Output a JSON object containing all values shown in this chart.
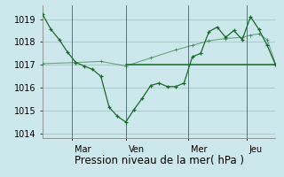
{
  "bg_color": "#cce8ec",
  "grid_color": "#aacccc",
  "line_color": "#1a6b2a",
  "ylim": [
    1013.8,
    1019.6
  ],
  "yticks": [
    1014,
    1015,
    1016,
    1017,
    1018,
    1019
  ],
  "xlabel": "Pression niveau de la mer( hPa )",
  "xlabel_fontsize": 8.5,
  "tick_fontsize": 7,
  "x_day_labels": [
    "Mar",
    "Ven",
    "Mer",
    "Jeu"
  ],
  "line1_x": [
    0,
    1,
    2,
    3,
    4,
    5,
    6,
    7,
    8,
    9,
    10,
    11,
    12,
    13,
    14,
    15,
    16,
    17,
    18,
    19,
    20,
    21,
    22,
    23,
    24,
    25,
    26,
    27,
    28
  ],
  "line1_y": [
    1019.2,
    1018.55,
    1018.1,
    1017.55,
    1017.1,
    1016.95,
    1016.8,
    1016.5,
    1015.15,
    1014.75,
    1014.5,
    1015.05,
    1015.55,
    1016.1,
    1016.2,
    1016.05,
    1016.05,
    1016.2,
    1017.35,
    1017.5,
    1018.45,
    1018.65,
    1018.2,
    1018.5,
    1018.1,
    1019.1,
    1018.55,
    1017.85,
    1017.0
  ],
  "line2_x": [
    0,
    4,
    7,
    10,
    13,
    16,
    18,
    20,
    22,
    24,
    25,
    26,
    27,
    28
  ],
  "line2_y": [
    1017.05,
    1017.1,
    1017.15,
    1016.95,
    1017.3,
    1017.65,
    1017.85,
    1018.05,
    1018.15,
    1018.2,
    1018.3,
    1018.35,
    1018.1,
    1017.05
  ],
  "hline_x": [
    10,
    28
  ],
  "hline_y": 1017.0
}
